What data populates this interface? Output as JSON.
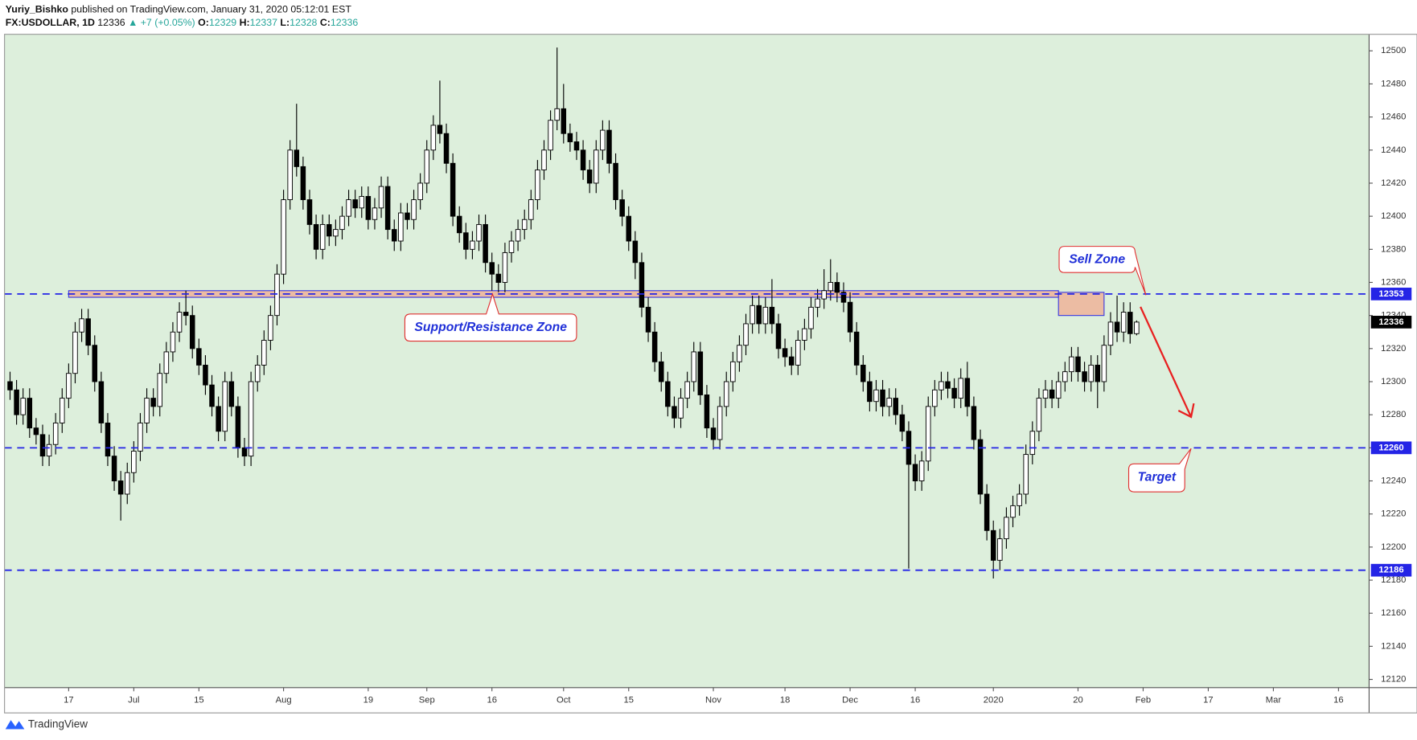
{
  "header": {
    "publisher": "Yuriy_Bishko",
    "published": "published on TradingView.com, January 31, 2020 05:12:01 EST",
    "symbol": "FX:USDOLLAR, 1D",
    "change": "▲ +7 (+0.05%)",
    "o": "O:",
    "h": "H:",
    "l": "L:",
    "c": "C:"
  },
  "footer": "TradingView",
  "chart_data": {
    "type": "candlestick",
    "ylim": [
      12115,
      12510
    ],
    "yticks": [
      12120,
      12140,
      12160,
      12180,
      12200,
      12220,
      12240,
      12260,
      12280,
      12300,
      12320,
      12340,
      12360,
      12380,
      12400,
      12420,
      12440,
      12460,
      12480,
      12500
    ],
    "xlim": [
      -0.85,
      208.7
    ],
    "xticks": [
      {
        "value": 9,
        "label": "17"
      },
      {
        "value": 19,
        "label": "Jul"
      },
      {
        "value": 29,
        "label": "15"
      },
      {
        "value": 42,
        "label": "Aug"
      },
      {
        "value": 55,
        "label": "19"
      },
      {
        "value": 64,
        "label": "Sep"
      },
      {
        "value": 74,
        "label": "16"
      },
      {
        "value": 85,
        "label": "Oct"
      },
      {
        "value": 95,
        "label": "15"
      },
      {
        "value": 108,
        "label": "Nov"
      },
      {
        "value": 119,
        "label": "18"
      },
      {
        "value": 129,
        "label": "Dec"
      },
      {
        "value": 139,
        "label": "16"
      },
      {
        "value": 151,
        "label": "2020"
      },
      {
        "value": 164,
        "label": "20"
      },
      {
        "value": 174,
        "label": "Feb"
      },
      {
        "value": 184,
        "label": "17"
      },
      {
        "value": 194,
        "label": "Mar"
      },
      {
        "value": 204,
        "label": "16"
      }
    ],
    "levels": [
      12353,
      12260,
      12186
    ],
    "level_color": "#2424e6",
    "background": "#ddefdc",
    "zones": [
      {
        "name": "Support/Resistance Zone",
        "range": [
          12351,
          12355
        ]
      },
      {
        "name": "Sell Zone",
        "range": [
          12340,
          12354
        ]
      }
    ],
    "annotations": [
      "Support/Resistance Zone",
      "Sell Zone",
      "Target"
    ],
    "ohlc": [
      [
        12300,
        12306,
        12289,
        12295
      ],
      [
        12295,
        12301,
        12274,
        12280
      ],
      [
        12280,
        12296,
        12274,
        12290
      ],
      [
        12290,
        12296,
        12266,
        12272
      ],
      [
        12272,
        12278,
        12262,
        12268
      ],
      [
        12268,
        12274,
        12249,
        12255
      ],
      [
        12255,
        12268,
        12249,
        12262
      ],
      [
        12262,
        12281,
        12256,
        12275
      ],
      [
        12275,
        12296,
        12269,
        12290
      ],
      [
        12290,
        12311,
        12284,
        12305
      ],
      [
        12305,
        12336,
        12299,
        12330
      ],
      [
        12330,
        12344,
        12324,
        12338
      ],
      [
        12338,
        12344,
        12316,
        12322
      ],
      [
        12322,
        12328,
        12294,
        12300
      ],
      [
        12300,
        12306,
        12269,
        12275
      ],
      [
        12275,
        12281,
        12249,
        12255
      ],
      [
        12255,
        12261,
        12234,
        12240
      ],
      [
        12240,
        12246,
        12216,
        12232
      ],
      [
        12232,
        12251,
        12226,
        12245
      ],
      [
        12245,
        12264,
        12239,
        12258
      ],
      [
        12258,
        12281,
        12252,
        12275
      ],
      [
        12275,
        12296,
        12269,
        12290
      ],
      [
        12290,
        12296,
        12279,
        12285
      ],
      [
        12285,
        12311,
        12279,
        12305
      ],
      [
        12305,
        12324,
        12299,
        12318
      ],
      [
        12318,
        12336,
        12312,
        12330
      ],
      [
        12330,
        12348,
        12324,
        12342
      ],
      [
        12342,
        12355,
        12334,
        12340
      ],
      [
        12340,
        12346,
        12314,
        12320
      ],
      [
        12320,
        12326,
        12304,
        12310
      ],
      [
        12310,
        12316,
        12292,
        12298
      ],
      [
        12298,
        12304,
        12279,
        12285
      ],
      [
        12285,
        12291,
        12264,
        12270
      ],
      [
        12270,
        12306,
        12264,
        12300
      ],
      [
        12300,
        12306,
        12279,
        12285
      ],
      [
        12285,
        12291,
        12254,
        12260
      ],
      [
        12260,
        12266,
        12249,
        12255
      ],
      [
        12255,
        12306,
        12249,
        12300
      ],
      [
        12300,
        12316,
        12294,
        12310
      ],
      [
        12310,
        12331,
        12304,
        12325
      ],
      [
        12325,
        12346,
        12319,
        12340
      ],
      [
        12340,
        12371,
        12334,
        12365
      ],
      [
        12365,
        12416,
        12359,
        12410
      ],
      [
        12410,
        12446,
        12404,
        12440
      ],
      [
        12440,
        12468,
        12424,
        12430
      ],
      [
        12430,
        12436,
        12404,
        12410
      ],
      [
        12410,
        12416,
        12389,
        12395
      ],
      [
        12395,
        12401,
        12374,
        12380
      ],
      [
        12380,
        12401,
        12374,
        12395
      ],
      [
        12395,
        12401,
        12382,
        12388
      ],
      [
        12388,
        12398,
        12382,
        12392
      ],
      [
        12392,
        12406,
        12386,
        12400
      ],
      [
        12400,
        12416,
        12394,
        12410
      ],
      [
        12410,
        12416,
        12399,
        12405
      ],
      [
        12405,
        12418,
        12399,
        12412
      ],
      [
        12412,
        12418,
        12392,
        12398
      ],
      [
        12398,
        12411,
        12392,
        12405
      ],
      [
        12405,
        12424,
        12399,
        12418
      ],
      [
        12418,
        12424,
        12386,
        12392
      ],
      [
        12392,
        12398,
        12379,
        12385
      ],
      [
        12385,
        12408,
        12379,
        12402
      ],
      [
        12402,
        12408,
        12392,
        12398
      ],
      [
        12398,
        12416,
        12392,
        12410
      ],
      [
        12410,
        12426,
        12404,
        12420
      ],
      [
        12420,
        12446,
        12414,
        12440
      ],
      [
        12440,
        12461,
        12434,
        12455
      ],
      [
        12455,
        12482,
        12444,
        12450
      ],
      [
        12450,
        12456,
        12426,
        12432
      ],
      [
        12432,
        12438,
        12394,
        12400
      ],
      [
        12400,
        12406,
        12384,
        12390
      ],
      [
        12390,
        12396,
        12374,
        12380
      ],
      [
        12380,
        12391,
        12374,
        12385
      ],
      [
        12385,
        12401,
        12379,
        12395
      ],
      [
        12395,
        12401,
        12366,
        12372
      ],
      [
        12372,
        12378,
        12355,
        12365
      ],
      [
        12365,
        12371,
        12354,
        12360
      ],
      [
        12360,
        12384,
        12354,
        12378
      ],
      [
        12378,
        12391,
        12372,
        12385
      ],
      [
        12385,
        12398,
        12379,
        12392
      ],
      [
        12392,
        12404,
        12386,
        12398
      ],
      [
        12398,
        12416,
        12392,
        12410
      ],
      [
        12410,
        12434,
        12404,
        12428
      ],
      [
        12428,
        12446,
        12422,
        12440
      ],
      [
        12440,
        12464,
        12434,
        12458
      ],
      [
        12458,
        12502,
        12452,
        12465
      ],
      [
        12465,
        12480,
        12444,
        12450
      ],
      [
        12450,
        12456,
        12439,
        12445
      ],
      [
        12445,
        12451,
        12434,
        12440
      ],
      [
        12440,
        12446,
        12422,
        12428
      ],
      [
        12428,
        12434,
        12414,
        12420
      ],
      [
        12420,
        12446,
        12414,
        12440
      ],
      [
        12440,
        12458,
        12434,
        12452
      ],
      [
        12452,
        12458,
        12426,
        12432
      ],
      [
        12432,
        12438,
        12404,
        12410
      ],
      [
        12410,
        12416,
        12394,
        12400
      ],
      [
        12400,
        12406,
        12379,
        12385
      ],
      [
        12385,
        12391,
        12362,
        12372
      ],
      [
        12372,
        12378,
        12339,
        12345
      ],
      [
        12345,
        12351,
        12324,
        12330
      ],
      [
        12330,
        12336,
        12306,
        12312
      ],
      [
        12312,
        12318,
        12294,
        12300
      ],
      [
        12300,
        12306,
        12279,
        12285
      ],
      [
        12285,
        12291,
        12272,
        12278
      ],
      [
        12278,
        12296,
        12272,
        12290
      ],
      [
        12290,
        12306,
        12284,
        12300
      ],
      [
        12300,
        12324,
        12294,
        12318
      ],
      [
        12318,
        12324,
        12286,
        12292
      ],
      [
        12292,
        12298,
        12266,
        12272
      ],
      [
        12272,
        12278,
        12259,
        12265
      ],
      [
        12265,
        12291,
        12259,
        12285
      ],
      [
        12285,
        12306,
        12279,
        12300
      ],
      [
        12300,
        12318,
        12294,
        12312
      ],
      [
        12312,
        12328,
        12306,
        12322
      ],
      [
        12322,
        12341,
        12316,
        12335
      ],
      [
        12335,
        12352,
        12329,
        12346
      ],
      [
        12346,
        12352,
        12329,
        12335
      ],
      [
        12335,
        12351,
        12329,
        12345
      ],
      [
        12345,
        12362,
        12329,
        12335
      ],
      [
        12335,
        12341,
        12314,
        12320
      ],
      [
        12320,
        12326,
        12309,
        12315
      ],
      [
        12315,
        12321,
        12304,
        12310
      ],
      [
        12310,
        12331,
        12304,
        12325
      ],
      [
        12325,
        12338,
        12319,
        12332
      ],
      [
        12332,
        12351,
        12326,
        12345
      ],
      [
        12345,
        12356,
        12339,
        12350
      ],
      [
        12350,
        12368,
        12344,
        12355
      ],
      [
        12355,
        12374,
        12349,
        12360
      ],
      [
        12360,
        12366,
        12348,
        12354
      ],
      [
        12354,
        12360,
        12342,
        12348
      ],
      [
        12348,
        12354,
        12324,
        12330
      ],
      [
        12330,
        12336,
        12304,
        12310
      ],
      [
        12310,
        12316,
        12294,
        12300
      ],
      [
        12300,
        12306,
        12282,
        12288
      ],
      [
        12288,
        12301,
        12282,
        12295
      ],
      [
        12295,
        12301,
        12279,
        12285
      ],
      [
        12285,
        12296,
        12279,
        12290
      ],
      [
        12290,
        12296,
        12274,
        12280
      ],
      [
        12280,
        12286,
        12264,
        12270
      ],
      [
        12270,
        12276,
        12187,
        12250
      ],
      [
        12250,
        12256,
        12234,
        12240
      ],
      [
        12240,
        12258,
        12234,
        12252
      ],
      [
        12252,
        12291,
        12246,
        12285
      ],
      [
        12285,
        12301,
        12279,
        12295
      ],
      [
        12295,
        12306,
        12289,
        12300
      ],
      [
        12300,
        12306,
        12290,
        12296
      ],
      [
        12296,
        12302,
        12284,
        12290
      ],
      [
        12290,
        12308,
        12284,
        12302
      ],
      [
        12302,
        12312,
        12279,
        12285
      ],
      [
        12285,
        12291,
        12259,
        12265
      ],
      [
        12265,
        12271,
        12226,
        12232
      ],
      [
        12232,
        12238,
        12204,
        12210
      ],
      [
        12210,
        12216,
        12181,
        12192
      ],
      [
        12192,
        12211,
        12186,
        12205
      ],
      [
        12205,
        12224,
        12199,
        12218
      ],
      [
        12218,
        12231,
        12212,
        12225
      ],
      [
        12225,
        12238,
        12219,
        12232
      ],
      [
        12232,
        12262,
        12226,
        12256
      ],
      [
        12256,
        12276,
        12250,
        12270
      ],
      [
        12270,
        12296,
        12264,
        12290
      ],
      [
        12290,
        12301,
        12284,
        12295
      ],
      [
        12295,
        12301,
        12284,
        12290
      ],
      [
        12290,
        12306,
        12284,
        12300
      ],
      [
        12300,
        12312,
        12294,
        12306
      ],
      [
        12306,
        12321,
        12300,
        12315
      ],
      [
        12315,
        12321,
        12300,
        12306
      ],
      [
        12306,
        12312,
        12294,
        12300
      ],
      [
        12300,
        12316,
        12294,
        12310
      ],
      [
        12310,
        12316,
        12284,
        12300
      ],
      [
        12300,
        12328,
        12294,
        12322
      ],
      [
        12322,
        12342,
        12316,
        12336
      ],
      [
        12336,
        12352,
        12324,
        12330
      ],
      [
        12330,
        12348,
        12324,
        12342
      ],
      [
        12342,
        12348,
        12323,
        12329
      ],
      [
        12329,
        12337,
        12328,
        12336
      ]
    ]
  }
}
